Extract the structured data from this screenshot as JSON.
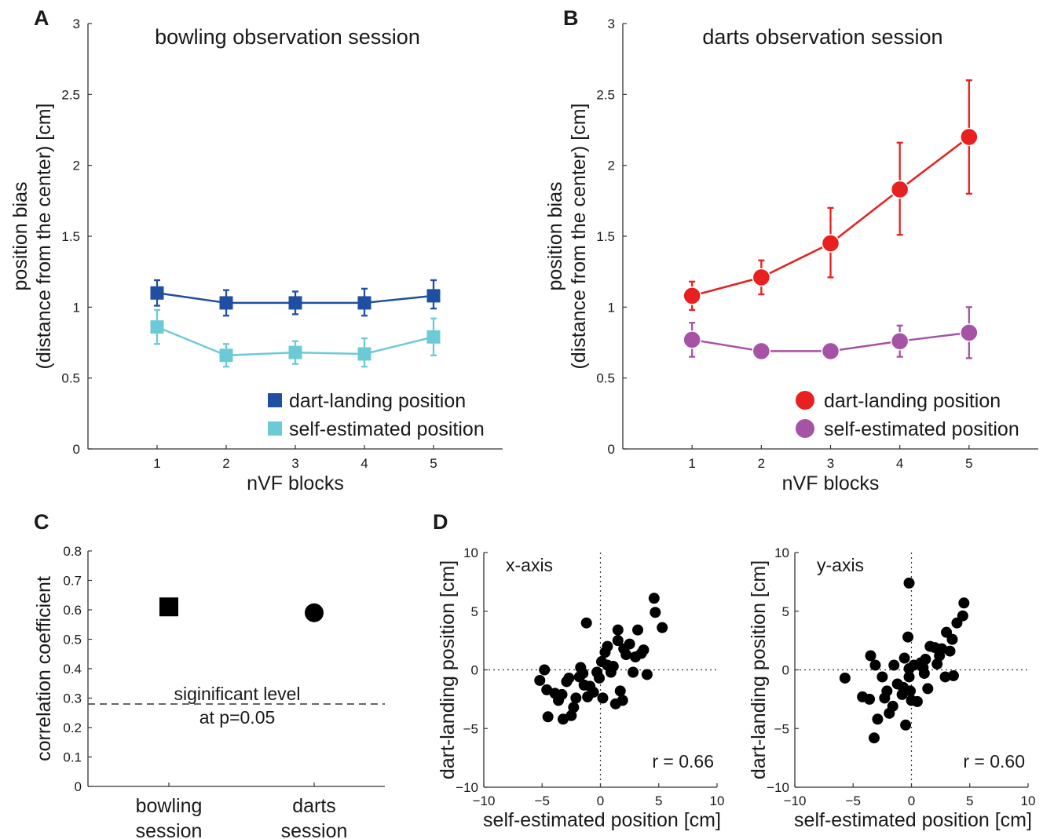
{
  "chart_data": [
    {
      "panel": "A",
      "type": "line",
      "title": "bowling observation session",
      "xlabel": "nVF blocks",
      "ylabel": [
        "position bias",
        "(distance from the center) [cm]"
      ],
      "ylim": [
        0,
        3
      ],
      "yticks": [
        0,
        0.5,
        1,
        1.5,
        2,
        2.5,
        3
      ],
      "xticks": [
        1,
        2,
        3,
        4,
        5
      ],
      "legend_position": "bottom-right",
      "series": [
        {
          "name": "dart-landing position",
          "marker": "square",
          "color": "#1f4fa0",
          "x": [
            1,
            2,
            3,
            4,
            5
          ],
          "y": [
            1.1,
            1.03,
            1.03,
            1.03,
            1.08
          ],
          "err_lo": [
            0.09,
            0.09,
            0.08,
            0.09,
            0.09
          ],
          "err_hi": [
            0.09,
            0.09,
            0.08,
            0.1,
            0.11
          ]
        },
        {
          "name": "self-estimated position",
          "marker": "square",
          "color": "#6ccad6",
          "x": [
            1,
            2,
            3,
            4,
            5
          ],
          "y": [
            0.86,
            0.66,
            0.68,
            0.67,
            0.79
          ],
          "err_lo": [
            0.12,
            0.08,
            0.08,
            0.09,
            0.13
          ],
          "err_hi": [
            0.12,
            0.08,
            0.08,
            0.11,
            0.13
          ]
        }
      ]
    },
    {
      "panel": "B",
      "type": "line",
      "title": "darts observation session",
      "xlabel": "nVF blocks",
      "ylabel": [
        "position bias",
        "(distance from the center) [cm]"
      ],
      "ylim": [
        0,
        3
      ],
      "yticks": [
        0,
        0.5,
        1,
        1.5,
        2,
        2.5,
        3
      ],
      "xticks": [
        1,
        2,
        3,
        4,
        5
      ],
      "legend_position": "bottom-right",
      "series": [
        {
          "name": "dart-landing position",
          "marker": "circle",
          "color": "#e8201f",
          "x": [
            1,
            2,
            3,
            4,
            5
          ],
          "y": [
            1.08,
            1.21,
            1.45,
            1.83,
            2.2
          ],
          "err_lo": [
            0.1,
            0.12,
            0.24,
            0.32,
            0.4
          ],
          "err_hi": [
            0.1,
            0.12,
            0.25,
            0.33,
            0.4
          ]
        },
        {
          "name": "self-estimated position",
          "marker": "circle",
          "color": "#a653a6",
          "x": [
            1,
            2,
            3,
            4,
            5
          ],
          "y": [
            0.77,
            0.69,
            0.69,
            0.76,
            0.82
          ],
          "err_lo": [
            0.12,
            0.0,
            0.0,
            0.11,
            0.18
          ],
          "err_hi": [
            0.12,
            0.0,
            0.0,
            0.11,
            0.18
          ]
        }
      ]
    },
    {
      "panel": "C",
      "type": "scatter",
      "ylabel": "correlation coefficient",
      "ylim": [
        0,
        0.8
      ],
      "yticks": [
        0,
        0.1,
        0.2,
        0.3,
        0.4,
        0.5,
        0.6,
        0.7,
        0.8
      ],
      "categories": [
        [
          "bowling",
          "session"
        ],
        [
          "darts",
          "session"
        ]
      ],
      "points": [
        {
          "category": 0,
          "value": 0.61,
          "marker": "square"
        },
        {
          "category": 1,
          "value": 0.59,
          "marker": "circle"
        }
      ],
      "threshold": {
        "value": 0.28,
        "label": [
          "siginificant level",
          "at p=0.05"
        ]
      }
    },
    {
      "panel": "D",
      "type": "scatter",
      "title": "x-axis",
      "xlabel": "self-estimated position [cm]",
      "ylabel": "dart-landing position [cm]",
      "xlim": [
        -10,
        10
      ],
      "ylim": [
        -10,
        10
      ],
      "xticks": [
        -10,
        -5,
        0,
        5,
        10
      ],
      "yticks": [
        -10,
        -5,
        0,
        5,
        10
      ],
      "annotation": "r = 0.66",
      "points": [
        [
          -5.2,
          -0.9
        ],
        [
          -4.8,
          0.0
        ],
        [
          -4.6,
          -1.7
        ],
        [
          -4.5,
          -4.0
        ],
        [
          -3.9,
          -2.0
        ],
        [
          -3.6,
          -2.6
        ],
        [
          -3.3,
          -2.1
        ],
        [
          -3.2,
          -4.2
        ],
        [
          -2.9,
          -1.0
        ],
        [
          -2.7,
          -0.7
        ],
        [
          -2.5,
          -3.9
        ],
        [
          -2.3,
          -3.2
        ],
        [
          -2.1,
          -2.4
        ],
        [
          -1.8,
          -0.6
        ],
        [
          -1.7,
          0.2
        ],
        [
          -1.5,
          -0.3
        ],
        [
          -1.4,
          -1.3
        ],
        [
          -1.2,
          4.0
        ],
        [
          -1.1,
          -2.3
        ],
        [
          -0.9,
          -1.4
        ],
        [
          -0.6,
          -1.9
        ],
        [
          -0.3,
          -0.2
        ],
        [
          -0.1,
          -0.7
        ],
        [
          0.1,
          0.7
        ],
        [
          0.2,
          -2.4
        ],
        [
          0.4,
          1.5
        ],
        [
          0.6,
          2.0
        ],
        [
          0.6,
          0.4
        ],
        [
          0.9,
          -0.2
        ],
        [
          1.1,
          0.3
        ],
        [
          1.3,
          -2.9
        ],
        [
          1.5,
          3.4
        ],
        [
          1.5,
          2.5
        ],
        [
          1.7,
          -1.8
        ],
        [
          1.9,
          -2.6
        ],
        [
          2.0,
          1.8
        ],
        [
          2.2,
          1.3
        ],
        [
          2.5,
          2.2
        ],
        [
          2.8,
          -0.2
        ],
        [
          3.0,
          1.1
        ],
        [
          3.2,
          3.4
        ],
        [
          3.5,
          1.4
        ],
        [
          3.7,
          1.7
        ],
        [
          4.0,
          -0.4
        ],
        [
          4.6,
          6.1
        ],
        [
          4.7,
          4.9
        ],
        [
          5.3,
          3.6
        ]
      ]
    },
    {
      "panel": "D",
      "type": "scatter",
      "title": "y-axis",
      "xlabel": "self-estimated position [cm]",
      "ylabel": "dart-landing position [cm]",
      "xlim": [
        -10,
        10
      ],
      "ylim": [
        -10,
        10
      ],
      "xticks": [
        -10,
        -5,
        0,
        5,
        10
      ],
      "yticks": [
        -10,
        -5,
        0,
        5,
        10
      ],
      "annotation": "r = 0.60",
      "points": [
        [
          -5.7,
          -0.7
        ],
        [
          -4.2,
          -2.3
        ],
        [
          -3.6,
          -2.5
        ],
        [
          -3.5,
          1.2
        ],
        [
          -3.2,
          -5.8
        ],
        [
          -3.1,
          0.4
        ],
        [
          -2.9,
          -4.2
        ],
        [
          -2.5,
          -0.6
        ],
        [
          -2.3,
          -2.4
        ],
        [
          -2.1,
          -1.8
        ],
        [
          -1.9,
          -3.7
        ],
        [
          -1.6,
          -3.1
        ],
        [
          -1.5,
          0.4
        ],
        [
          -1.2,
          -1.2
        ],
        [
          -0.8,
          -2.1
        ],
        [
          -0.7,
          -1.5
        ],
        [
          -0.6,
          1.0
        ],
        [
          -0.5,
          -4.7
        ],
        [
          -0.3,
          2.8
        ],
        [
          -0.2,
          7.4
        ],
        [
          -0.2,
          0.1
        ],
        [
          -0.2,
          -0.6
        ],
        [
          -0.1,
          -1.8
        ],
        [
          0.0,
          -2.6
        ],
        [
          0.2,
          0.4
        ],
        [
          0.5,
          -2.7
        ],
        [
          0.8,
          0.6
        ],
        [
          1.0,
          0.2
        ],
        [
          1.1,
          -0.3
        ],
        [
          1.2,
          0.9
        ],
        [
          1.4,
          -1.6
        ],
        [
          1.6,
          2.0
        ],
        [
          2.0,
          1.9
        ],
        [
          2.2,
          0.5
        ],
        [
          2.4,
          1.2
        ],
        [
          2.6,
          1.8
        ],
        [
          2.9,
          -0.6
        ],
        [
          3.0,
          3.2
        ],
        [
          3.3,
          1.6
        ],
        [
          3.5,
          2.6
        ],
        [
          3.6,
          -0.5
        ],
        [
          3.9,
          4.0
        ],
        [
          4.4,
          4.6
        ],
        [
          4.5,
          5.7
        ]
      ]
    }
  ],
  "panel_letters": [
    "A",
    "B",
    "C",
    "D"
  ]
}
